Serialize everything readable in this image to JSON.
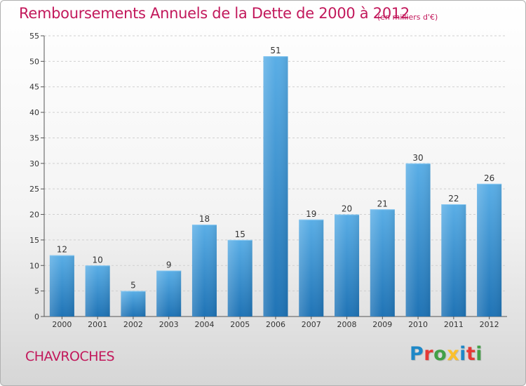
{
  "header": {
    "title": "Remboursements Annuels de la Dette de 2000 à 2012",
    "subtitle": "(en milliers d'€)"
  },
  "footer": {
    "place": "CHAVROCHES",
    "logo": "Proxiti",
    "logo_letters": [
      {
        "char": "P",
        "color": "#1e88c7"
      },
      {
        "char": "r",
        "color": "#e53935"
      },
      {
        "char": "o",
        "color": "#43a047"
      },
      {
        "char": "x",
        "color": "#fbc02d"
      },
      {
        "char": "i",
        "color": "#1e88c7"
      },
      {
        "char": "t",
        "color": "#e53935"
      },
      {
        "char": "i",
        "color": "#43a047"
      }
    ]
  },
  "colors": {
    "accent": "#c2185b",
    "bar_top": "#5aaee6",
    "bar_bottom": "#1f73b5",
    "grid": "#d0d0d0",
    "axis": "#555555"
  },
  "chart_data": {
    "type": "bar",
    "title": "Remboursements Annuels de la Dette de 2000 à 2012",
    "subtitle": "(en milliers d'€)",
    "categories": [
      "2000",
      "2001",
      "2002",
      "2003",
      "2004",
      "2005",
      "2006",
      "2007",
      "2008",
      "2009",
      "2010",
      "2011",
      "2012"
    ],
    "values": [
      12,
      10,
      5,
      9,
      18,
      15,
      51,
      19,
      20,
      21,
      30,
      22,
      26
    ],
    "ylim": [
      0,
      55
    ],
    "yticks": [
      0,
      5,
      10,
      15,
      20,
      25,
      30,
      35,
      40,
      45,
      50,
      55
    ],
    "xlabel": "",
    "ylabel": "",
    "grid": true,
    "show_data_labels": true
  }
}
